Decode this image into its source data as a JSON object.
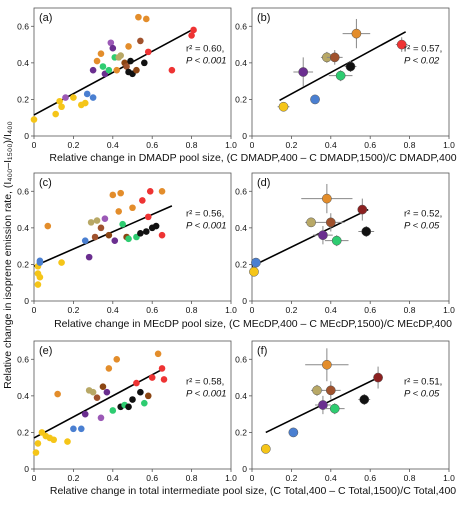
{
  "y_axis_label": "Relative change in isoprene emission rate, (I₄₀₀–I₁₅₀₀)/I₄₀₀",
  "rows": [
    {
      "x_label": "Relative change in DMADP pool size, (C DMADP,400 – C DMADP,1500)/C DMADP,400"
    },
    {
      "x_label": "Relative change in MEcDP pool size, (C MEcDP,400 – C MEcDP,1500)/C MEcDP,400"
    },
    {
      "x_label": "Relative change in total intermediate pool size, (C Total,400 – C Total,1500)/C Total,400"
    }
  ],
  "chart_data": [
    {
      "type": "scatter",
      "panel": "(a)",
      "stat_r": "r² = 0.60,",
      "stat_p": "P < 0.001",
      "xlim": [
        0,
        1.0
      ],
      "ylim": [
        0,
        0.7
      ],
      "xticks": [
        "0",
        "0.2",
        "0.4",
        "0.6",
        "0.8",
        "1.0"
      ],
      "yticks": [
        "0",
        "0.2",
        "0.4",
        "0.6"
      ],
      "fit": {
        "x": [
          0.0,
          0.81
        ],
        "y": [
          0.115,
          0.585
        ]
      },
      "points": [
        {
          "x": 0.0,
          "y": 0.09,
          "c": "#f5c518"
        },
        {
          "x": 0.11,
          "y": 0.12,
          "c": "#f5c518"
        },
        {
          "x": 0.13,
          "y": 0.19,
          "c": "#f5c518"
        },
        {
          "x": 0.14,
          "y": 0.16,
          "c": "#f5c518"
        },
        {
          "x": 0.16,
          "y": 0.21,
          "c": "#9b59b6"
        },
        {
          "x": 0.2,
          "y": 0.21,
          "c": "#f5c518"
        },
        {
          "x": 0.24,
          "y": 0.17,
          "c": "#f5c518"
        },
        {
          "x": 0.26,
          "y": 0.18,
          "c": "#f5c518"
        },
        {
          "x": 0.27,
          "y": 0.23,
          "c": "#4a7fd1"
        },
        {
          "x": 0.3,
          "y": 0.21,
          "c": "#4a7fd1"
        },
        {
          "x": 0.3,
          "y": 0.36,
          "c": "#6a2e8f"
        },
        {
          "x": 0.32,
          "y": 0.41,
          "c": "#e38d2b"
        },
        {
          "x": 0.34,
          "y": 0.45,
          "c": "#e38d2b"
        },
        {
          "x": 0.35,
          "y": 0.38,
          "c": "#2ecc71"
        },
        {
          "x": 0.36,
          "y": 0.34,
          "c": "#6a2e8f"
        },
        {
          "x": 0.38,
          "y": 0.36,
          "c": "#2ecc71"
        },
        {
          "x": 0.39,
          "y": 0.51,
          "c": "#9b59b6"
        },
        {
          "x": 0.4,
          "y": 0.48,
          "c": "#6a2e8f"
        },
        {
          "x": 0.41,
          "y": 0.43,
          "c": "#2ecc71"
        },
        {
          "x": 0.42,
          "y": 0.36,
          "c": "#e38d2b"
        },
        {
          "x": 0.43,
          "y": 0.43,
          "c": "#b8a866"
        },
        {
          "x": 0.44,
          "y": 0.44,
          "c": "#b8a866"
        },
        {
          "x": 0.46,
          "y": 0.4,
          "c": "#8b4513"
        },
        {
          "x": 0.47,
          "y": 0.38,
          "c": "#a0522d"
        },
        {
          "x": 0.48,
          "y": 0.49,
          "c": "#e38d2b"
        },
        {
          "x": 0.48,
          "y": 0.35,
          "c": "#111111"
        },
        {
          "x": 0.49,
          "y": 0.41,
          "c": "#111111"
        },
        {
          "x": 0.5,
          "y": 0.34,
          "c": "#111111"
        },
        {
          "x": 0.52,
          "y": 0.36,
          "c": "#8b4513"
        },
        {
          "x": 0.53,
          "y": 0.65,
          "c": "#e38d2b"
        },
        {
          "x": 0.54,
          "y": 0.52,
          "c": "#a0522d"
        },
        {
          "x": 0.56,
          "y": 0.4,
          "c": "#111111"
        },
        {
          "x": 0.57,
          "y": 0.64,
          "c": "#e38d2b"
        },
        {
          "x": 0.58,
          "y": 0.46,
          "c": "#ee3333"
        },
        {
          "x": 0.7,
          "y": 0.36,
          "c": "#ee3333"
        },
        {
          "x": 0.8,
          "y": 0.55,
          "c": "#ee3333"
        },
        {
          "x": 0.81,
          "y": 0.58,
          "c": "#ee3333"
        }
      ]
    },
    {
      "type": "scatter",
      "panel": "(b)",
      "stat_r": "r² = 0.57,",
      "stat_p": "P < 0.02",
      "xlim": [
        0,
        1.0
      ],
      "ylim": [
        0,
        0.7
      ],
      "xticks": [
        "0",
        "0.2",
        "0.4",
        "0.6",
        "0.8",
        "1.0"
      ],
      "yticks": [
        "0",
        "0.2",
        "0.4",
        "0.6"
      ],
      "fit": {
        "x": [
          0.14,
          0.78
        ],
        "y": [
          0.195,
          0.57
        ]
      },
      "points": [
        {
          "x": 0.16,
          "y": 0.16,
          "c": "#f5c518",
          "xe": 0.03,
          "ye": 0.02
        },
        {
          "x": 0.26,
          "y": 0.35,
          "c": "#6a2e8f",
          "xe": 0.05,
          "ye": 0.08
        },
        {
          "x": 0.32,
          "y": 0.2,
          "c": "#4a7fd1",
          "xe": 0.02,
          "ye": 0.02
        },
        {
          "x": 0.38,
          "y": 0.43,
          "c": "#b8a866",
          "xe": 0.03,
          "ye": 0.03
        },
        {
          "x": 0.42,
          "y": 0.43,
          "c": "#a0522d",
          "xe": 0.04,
          "ye": 0.04
        },
        {
          "x": 0.45,
          "y": 0.33,
          "c": "#2ecc71",
          "xe": 0.06,
          "ye": 0.03
        },
        {
          "x": 0.5,
          "y": 0.38,
          "c": "#111111",
          "xe": 0.03,
          "ye": 0.03
        },
        {
          "x": 0.53,
          "y": 0.56,
          "c": "#e38d2b",
          "xe": 0.07,
          "ye": 0.08
        },
        {
          "x": 0.76,
          "y": 0.5,
          "c": "#ee3333",
          "xe": 0.03,
          "ye": 0.04
        }
      ]
    },
    {
      "type": "scatter",
      "panel": "(c)",
      "stat_r": "r² = 0.56,",
      "stat_p": "P < 0.001",
      "xlim": [
        0,
        1.0
      ],
      "ylim": [
        0,
        0.7
      ],
      "xticks": [
        "0",
        "0.2",
        "0.4",
        "0.6",
        "0.8",
        "1.0"
      ],
      "yticks": [
        "0",
        "0.2",
        "0.4",
        "0.6"
      ],
      "fit": {
        "x": [
          0.0,
          0.7
        ],
        "y": [
          0.19,
          0.52
        ]
      },
      "points": [
        {
          "x": 0.02,
          "y": 0.09,
          "c": "#f5c518"
        },
        {
          "x": 0.02,
          "y": 0.15,
          "c": "#f5c518"
        },
        {
          "x": 0.02,
          "y": 0.19,
          "c": "#f5c518"
        },
        {
          "x": 0.03,
          "y": 0.22,
          "c": "#4a7fd1"
        },
        {
          "x": 0.03,
          "y": 0.13,
          "c": "#f5c518"
        },
        {
          "x": 0.03,
          "y": 0.21,
          "c": "#4a7fd1"
        },
        {
          "x": 0.07,
          "y": 0.41,
          "c": "#e38d2b"
        },
        {
          "x": 0.14,
          "y": 0.21,
          "c": "#f5c518"
        },
        {
          "x": 0.26,
          "y": 0.33,
          "c": "#4a7fd1"
        },
        {
          "x": 0.28,
          "y": 0.24,
          "c": "#6a2e8f"
        },
        {
          "x": 0.29,
          "y": 0.43,
          "c": "#b8a866"
        },
        {
          "x": 0.31,
          "y": 0.35,
          "c": "#a0522d"
        },
        {
          "x": 0.32,
          "y": 0.44,
          "c": "#b8a866"
        },
        {
          "x": 0.34,
          "y": 0.4,
          "c": "#a0522d"
        },
        {
          "x": 0.36,
          "y": 0.45,
          "c": "#9b59b6"
        },
        {
          "x": 0.38,
          "y": 0.36,
          "c": "#8b4513"
        },
        {
          "x": 0.4,
          "y": 0.58,
          "c": "#e38d2b"
        },
        {
          "x": 0.41,
          "y": 0.33,
          "c": "#6a2e8f"
        },
        {
          "x": 0.43,
          "y": 0.49,
          "c": "#e38d2b"
        },
        {
          "x": 0.44,
          "y": 0.59,
          "c": "#e38d2b"
        },
        {
          "x": 0.45,
          "y": 0.42,
          "c": "#2ecc71"
        },
        {
          "x": 0.47,
          "y": 0.35,
          "c": "#8b4513"
        },
        {
          "x": 0.48,
          "y": 0.34,
          "c": "#2ecc71"
        },
        {
          "x": 0.5,
          "y": 0.51,
          "c": "#e38d2b"
        },
        {
          "x": 0.52,
          "y": 0.35,
          "c": "#2ecc71"
        },
        {
          "x": 0.54,
          "y": 0.37,
          "c": "#111111"
        },
        {
          "x": 0.55,
          "y": 0.55,
          "c": "#ee3333"
        },
        {
          "x": 0.57,
          "y": 0.38,
          "c": "#111111"
        },
        {
          "x": 0.58,
          "y": 0.46,
          "c": "#ee3333"
        },
        {
          "x": 0.59,
          "y": 0.6,
          "c": "#ee3333"
        },
        {
          "x": 0.6,
          "y": 0.4,
          "c": "#111111"
        },
        {
          "x": 0.62,
          "y": 0.41,
          "c": "#111111"
        },
        {
          "x": 0.65,
          "y": 0.6,
          "c": "#e38d2b"
        },
        {
          "x": 0.65,
          "y": 0.36,
          "c": "#ee3333"
        }
      ]
    },
    {
      "type": "scatter",
      "panel": "(d)",
      "stat_r": "r² = 0.52,",
      "stat_p": "P < 0.05",
      "xlim": [
        0,
        1.0
      ],
      "ylim": [
        0,
        0.7
      ],
      "xticks": [
        "0",
        "0.2",
        "0.4",
        "0.6",
        "0.8",
        "1.0"
      ],
      "yticks": [
        "0",
        "0.2",
        "0.4",
        "0.6"
      ],
      "fit": {
        "x": [
          0.0,
          0.59
        ],
        "y": [
          0.19,
          0.5
        ]
      },
      "points": [
        {
          "x": 0.01,
          "y": 0.16,
          "c": "#f5c518",
          "xe": 0.01,
          "ye": 0.02
        },
        {
          "x": 0.02,
          "y": 0.21,
          "c": "#4a7fd1",
          "xe": 0.01,
          "ye": 0.02
        },
        {
          "x": 0.3,
          "y": 0.43,
          "c": "#b8a866",
          "xe": 0.03,
          "ye": 0.02
        },
        {
          "x": 0.36,
          "y": 0.36,
          "c": "#6a2e8f",
          "xe": 0.05,
          "ye": 0.05
        },
        {
          "x": 0.38,
          "y": 0.56,
          "c": "#e38d2b",
          "xe": 0.13,
          "ye": 0.08
        },
        {
          "x": 0.4,
          "y": 0.43,
          "c": "#a0522d",
          "xe": 0.07,
          "ye": 0.05
        },
        {
          "x": 0.43,
          "y": 0.33,
          "c": "#2ecc71",
          "xe": 0.06,
          "ye": 0.03
        },
        {
          "x": 0.56,
          "y": 0.5,
          "c": "#8b2020",
          "xe": 0.02,
          "ye": 0.06
        },
        {
          "x": 0.58,
          "y": 0.38,
          "c": "#111111",
          "xe": 0.04,
          "ye": 0.03
        }
      ]
    },
    {
      "type": "scatter",
      "panel": "(e)",
      "stat_r": "r² = 0.58,",
      "stat_p": "P < 0.001",
      "xlim": [
        0,
        1.0
      ],
      "ylim": [
        0,
        0.7
      ],
      "xticks": [
        "0",
        "0.2",
        "0.4",
        "0.6",
        "0.8",
        "1.0"
      ],
      "yticks": [
        "0",
        "0.2",
        "0.4",
        "0.6"
      ],
      "fit": {
        "x": [
          0.0,
          0.66
        ],
        "y": [
          0.17,
          0.55
        ]
      },
      "points": [
        {
          "x": 0.01,
          "y": 0.09,
          "c": "#f5c518"
        },
        {
          "x": 0.02,
          "y": 0.14,
          "c": "#f5c518"
        },
        {
          "x": 0.04,
          "y": 0.2,
          "c": "#f5c518"
        },
        {
          "x": 0.06,
          "y": 0.18,
          "c": "#f5c518"
        },
        {
          "x": 0.08,
          "y": 0.17,
          "c": "#f5c518"
        },
        {
          "x": 0.1,
          "y": 0.16,
          "c": "#f5c518"
        },
        {
          "x": 0.12,
          "y": 0.41,
          "c": "#e38d2b"
        },
        {
          "x": 0.17,
          "y": 0.15,
          "c": "#f5c518"
        },
        {
          "x": 0.2,
          "y": 0.22,
          "c": "#4a7fd1"
        },
        {
          "x": 0.24,
          "y": 0.22,
          "c": "#4a7fd1"
        },
        {
          "x": 0.26,
          "y": 0.3,
          "c": "#6a2e8f"
        },
        {
          "x": 0.28,
          "y": 0.43,
          "c": "#b8a866"
        },
        {
          "x": 0.3,
          "y": 0.42,
          "c": "#b8a866"
        },
        {
          "x": 0.32,
          "y": 0.39,
          "c": "#a0522d"
        },
        {
          "x": 0.34,
          "y": 0.28,
          "c": "#9b59b6"
        },
        {
          "x": 0.35,
          "y": 0.45,
          "c": "#8b4513"
        },
        {
          "x": 0.37,
          "y": 0.42,
          "c": "#6a2e8f"
        },
        {
          "x": 0.38,
          "y": 0.55,
          "c": "#e38d2b"
        },
        {
          "x": 0.4,
          "y": 0.32,
          "c": "#2ecc71"
        },
        {
          "x": 0.42,
          "y": 0.6,
          "c": "#e38d2b"
        },
        {
          "x": 0.44,
          "y": 0.34,
          "c": "#111111"
        },
        {
          "x": 0.46,
          "y": 0.35,
          "c": "#2ecc71"
        },
        {
          "x": 0.48,
          "y": 0.34,
          "c": "#111111"
        },
        {
          "x": 0.5,
          "y": 0.38,
          "c": "#111111"
        },
        {
          "x": 0.52,
          "y": 0.47,
          "c": "#ee3333"
        },
        {
          "x": 0.54,
          "y": 0.42,
          "c": "#111111"
        },
        {
          "x": 0.56,
          "y": 0.36,
          "c": "#2ecc71"
        },
        {
          "x": 0.58,
          "y": 0.4,
          "c": "#8b4513"
        },
        {
          "x": 0.6,
          "y": 0.5,
          "c": "#ee3333"
        },
        {
          "x": 0.63,
          "y": 0.63,
          "c": "#e38d2b"
        },
        {
          "x": 0.65,
          "y": 0.55,
          "c": "#ee3333"
        },
        {
          "x": 0.66,
          "y": 0.49,
          "c": "#ee3333"
        }
      ]
    },
    {
      "type": "scatter",
      "panel": "(f)",
      "stat_r": "r² = 0.51,",
      "stat_p": "P < 0.05",
      "xlim": [
        0,
        1.0
      ],
      "ylim": [
        0,
        0.7
      ],
      "xticks": [
        "0",
        "0.2",
        "0.4",
        "0.6",
        "0.8",
        "1.0"
      ],
      "yticks": [
        "0",
        "0.2",
        "0.4",
        "0.6"
      ],
      "fit": {
        "x": [
          0.07,
          0.66
        ],
        "y": [
          0.2,
          0.51
        ]
      },
      "points": [
        {
          "x": 0.07,
          "y": 0.11,
          "c": "#f5c518",
          "xe": 0.01,
          "ye": 0.02
        },
        {
          "x": 0.21,
          "y": 0.2,
          "c": "#4a7fd1",
          "xe": 0.01,
          "ye": 0.02
        },
        {
          "x": 0.33,
          "y": 0.43,
          "c": "#b8a866",
          "xe": 0.03,
          "ye": 0.03
        },
        {
          "x": 0.36,
          "y": 0.35,
          "c": "#6a2e8f",
          "xe": 0.04,
          "ye": 0.05
        },
        {
          "x": 0.38,
          "y": 0.57,
          "c": "#e38d2b",
          "xe": 0.11,
          "ye": 0.09
        },
        {
          "x": 0.4,
          "y": 0.43,
          "c": "#a0522d",
          "xe": 0.05,
          "ye": 0.05
        },
        {
          "x": 0.42,
          "y": 0.33,
          "c": "#2ecc71",
          "xe": 0.05,
          "ye": 0.03
        },
        {
          "x": 0.57,
          "y": 0.38,
          "c": "#111111",
          "xe": 0.03,
          "ye": 0.03
        },
        {
          "x": 0.64,
          "y": 0.5,
          "c": "#8b2020",
          "xe": 0.02,
          "ye": 0.06
        }
      ]
    }
  ]
}
